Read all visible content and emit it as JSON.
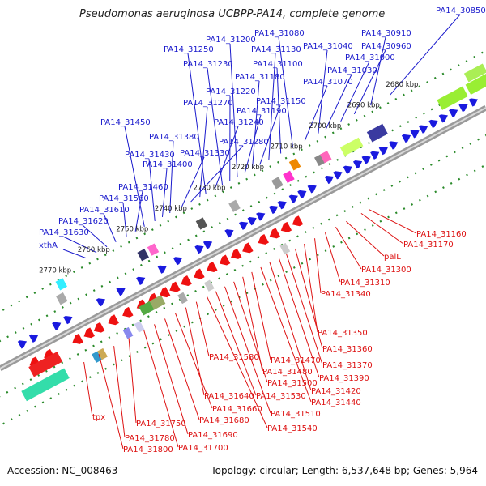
{
  "title": "Pseudomonas aeruginosa UCBPP-PA14, complete genome",
  "footer": {
    "accession": "Accession: NC_008463",
    "summary": "Topology: circular; Length: 6,537,648 bp; Genes: 5,964"
  },
  "colors": {
    "forward_gene": "#1a1adf",
    "reverse_gene": "#ee1111",
    "forward_label": "#1a1acc",
    "reverse_label": "#dd1111",
    "tick": "#2a8a2a",
    "backbone": "#808080"
  },
  "kbp_ticks": [
    "2680 kbp",
    "2690 kbp",
    "2700 kbp",
    "2710 kbp",
    "2720 kbp",
    "2730 kbp",
    "2740 kbp",
    "2750 kbp",
    "2760 kbp",
    "2770 kbp"
  ],
  "forward_labels": [
    "PA14_30850",
    "PA14_30910",
    "PA14_30960",
    "PA14_31000",
    "PA14_31030",
    "PA14_31040",
    "PA14_31070",
    "PA14_31080",
    "PA14_31100",
    "PA14_31130",
    "PA14_31150",
    "PA14_31180",
    "PA14_31190",
    "PA14_31200",
    "PA14_31220",
    "PA14_31230",
    "PA14_31240",
    "PA14_31250",
    "PA14_31270",
    "PA14_31280",
    "PA14_31330",
    "PA14_31380",
    "PA14_31400",
    "PA14_31430",
    "PA14_31450",
    "PA14_31460",
    "PA14_31560",
    "PA14_31610",
    "PA14_31620",
    "PA14_31630",
    "xthA"
  ],
  "reverse_labels": [
    "PA14_31160",
    "PA14_31170",
    "palL",
    "PA14_31300",
    "PA14_31310",
    "PA14_31340",
    "PA14_31350",
    "PA14_31360",
    "PA14_31370",
    "PA14_31390",
    "PA14_31420",
    "PA14_31440",
    "PA14_31470",
    "PA14_31480",
    "PA14_31500",
    "PA14_31510",
    "PA14_31530",
    "PA14_31540",
    "PA14_31580",
    "PA14_31640",
    "PA14_31660",
    "PA14_31680",
    "PA14_31690",
    "PA14_31700",
    "PA14_31750",
    "PA14_31780",
    "PA14_31800",
    "tpx"
  ]
}
